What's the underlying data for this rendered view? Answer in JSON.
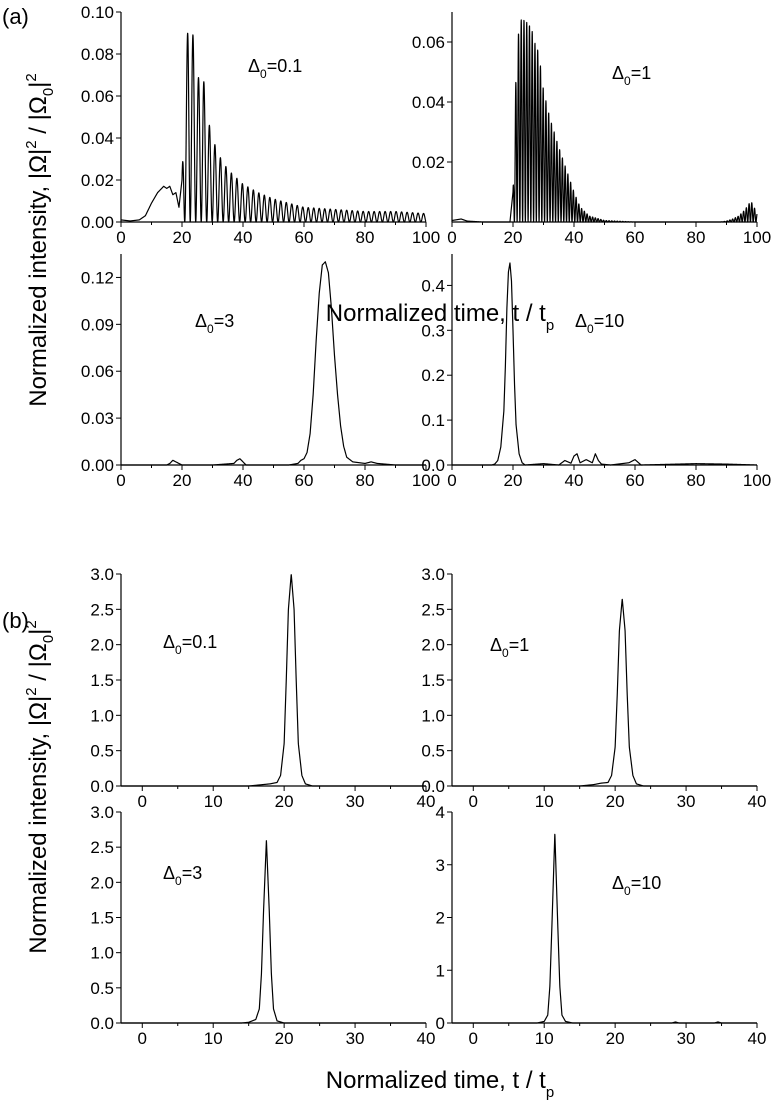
{
  "figure": {
    "part_a": {
      "label": "(a)",
      "ylabel_main": "Normalized intensity, |Ω|",
      "ylabel_sup1": "2",
      "ylabel_mid": " / |Ω",
      "ylabel_sub": "0",
      "ylabel_end": "|",
      "ylabel_sup2": "2",
      "xlabel_main": "Normalized time, t / t",
      "xlabel_sub": "p"
    },
    "part_b": {
      "label": "(b)",
      "ylabel_main": "Normalized intensity, |Ω|",
      "ylabel_sup1": "2",
      "ylabel_mid": " / |Ω",
      "ylabel_sub": "0",
      "ylabel_end": "|",
      "ylabel_sup2": "2",
      "xlabel_main": "Normalized time, t / t",
      "xlabel_sub": "p"
    }
  },
  "chart_data": [
    {
      "type": "line",
      "part": "a",
      "panel": "top-left",
      "annotation": {
        "sym": "Δ",
        "sub": "0",
        "rest": "=0.1"
      },
      "xlim": [
        0,
        100
      ],
      "ylim": [
        0,
        0.1
      ],
      "xticks": [
        0,
        20,
        40,
        60,
        80,
        100
      ],
      "xtick_labels": [
        "0",
        "20",
        "40",
        "60",
        "80",
        "100"
      ],
      "yticks": [
        0,
        0.02,
        0.04,
        0.06,
        0.08,
        0.1
      ],
      "ytick_labels": [
        "0.00",
        "0.02",
        "0.04",
        "0.06",
        "0.08",
        "0.10"
      ],
      "series": [
        {
          "x": [
            0,
            3,
            6,
            8,
            10,
            12,
            14,
            15,
            16,
            17,
            18,
            19,
            20,
            20.5,
            21,
            22,
            23,
            23.5,
            24,
            25,
            26,
            27,
            28,
            30,
            32,
            35,
            40,
            45,
            50,
            55,
            60,
            65,
            70,
            75,
            80,
            85,
            90,
            95,
            100
          ],
          "y": [
            0.001,
            0.0005,
            0.001,
            0.003,
            0.009,
            0.014,
            0.017,
            0.016,
            0.017,
            0.013,
            0.014,
            0.007,
            0.02,
            0.05,
            0.066,
            0.095,
            0.097,
            0.09,
            0.085,
            0.068,
            0.07,
            0.07,
            0.052,
            0.04,
            0.032,
            0.025,
            0.018,
            0.014,
            0.011,
            0.009,
            0.007,
            0.0065,
            0.006,
            0.0055,
            0.005,
            0.005,
            0.005,
            0.0045,
            0.004
          ],
          "oscillation_period": 1.8,
          "oscillation_start": 20
        }
      ]
    },
    {
      "type": "line",
      "part": "a",
      "panel": "top-right",
      "annotation": {
        "sym": "Δ",
        "sub": "0",
        "rest": "=1"
      },
      "xlim": [
        0,
        100
      ],
      "ylim": [
        0,
        0.07
      ],
      "xticks": [
        0,
        20,
        40,
        60,
        80,
        100
      ],
      "xtick_labels": [
        "0",
        "20",
        "40",
        "60",
        "80",
        "100"
      ],
      "yticks": [
        0.02,
        0.04,
        0.06
      ],
      "ytick_labels": [
        "0.02",
        "0.04",
        "0.06"
      ],
      "series": [
        {
          "x": [
            0,
            3,
            5,
            10,
            15,
            19,
            20,
            21,
            22,
            23,
            24,
            25,
            26,
            27,
            28,
            29,
            30,
            32,
            35,
            38,
            40,
            42,
            45,
            50,
            60,
            70,
            80,
            88,
            90,
            92,
            94,
            96,
            98,
            100
          ],
          "y": [
            0.0005,
            0.001,
            0.0003,
            0,
            0,
            0,
            0.01,
            0.05,
            0.066,
            0.068,
            0.067,
            0.066,
            0.065,
            0.06,
            0.058,
            0.052,
            0.044,
            0.035,
            0.025,
            0.016,
            0.01,
            0.005,
            0.002,
            0.0005,
            0,
            0,
            0,
            0,
            0.0003,
            0.001,
            0.002,
            0.004,
            0.007,
            0.003
          ],
          "oscillation_period": 0.9,
          "oscillation_start": 20
        }
      ]
    },
    {
      "type": "line",
      "part": "a",
      "panel": "bottom-left",
      "annotation": {
        "sym": "Δ",
        "sub": "0",
        "rest": "=3"
      },
      "xlim": [
        0,
        100
      ],
      "ylim": [
        0,
        0.135
      ],
      "xticks": [
        0,
        20,
        40,
        60,
        80,
        100
      ],
      "xtick_labels": [
        "0",
        "20",
        "40",
        "60",
        "80",
        "100"
      ],
      "yticks": [
        0,
        0.03,
        0.06,
        0.09,
        0.12
      ],
      "ytick_labels": [
        "0.00",
        "0.03",
        "0.06",
        "0.09",
        "0.12"
      ],
      "series": [
        {
          "x": [
            0,
            10,
            15,
            16,
            17,
            18,
            19,
            20,
            30,
            37,
            38,
            39,
            40,
            41,
            45,
            55,
            58,
            59,
            60,
            61,
            62,
            63,
            64,
            65,
            66,
            67,
            68,
            69,
            70,
            71,
            72,
            73,
            74,
            76,
            80,
            82,
            84,
            90,
            100
          ],
          "y": [
            0,
            0,
            0,
            0.001,
            0.003,
            0.002,
            0.001,
            0,
            0,
            0.001,
            0.003,
            0.004,
            0.002,
            0,
            0,
            0,
            0.001,
            0.003,
            0.004,
            0.008,
            0.02,
            0.045,
            0.08,
            0.11,
            0.128,
            0.13,
            0.123,
            0.1,
            0.07,
            0.045,
            0.025,
            0.012,
            0.005,
            0.002,
            0.001,
            0.002,
            0.001,
            0,
            0
          ]
        }
      ]
    },
    {
      "type": "line",
      "part": "a",
      "panel": "bottom-right",
      "annotation": {
        "sym": "Δ",
        "sub": "0",
        "rest": "=10"
      },
      "xlim": [
        0,
        100
      ],
      "ylim": [
        0,
        0.47
      ],
      "xticks": [
        0,
        20,
        40,
        60,
        80,
        100
      ],
      "xtick_labels": [
        "0",
        "20",
        "40",
        "60",
        "80",
        "100"
      ],
      "yticks": [
        0,
        0.1,
        0.2,
        0.3,
        0.4
      ],
      "ytick_labels": [
        "0.0",
        "0.1",
        "0.2",
        "0.3",
        "0.4"
      ],
      "series": [
        {
          "x": [
            0,
            13,
            14,
            15,
            16,
            17,
            17.5,
            18,
            18.5,
            19,
            19.5,
            20,
            20.5,
            21,
            22,
            23,
            24,
            30,
            35,
            37,
            39,
            40,
            41,
            42,
            44,
            46,
            47,
            48,
            49,
            52,
            58,
            60,
            62,
            80,
            90,
            100
          ],
          "y": [
            0,
            0,
            0.002,
            0.01,
            0.04,
            0.12,
            0.22,
            0.35,
            0.43,
            0.45,
            0.41,
            0.3,
            0.18,
            0.09,
            0.025,
            0.005,
            0,
            0.003,
            0,
            0.01,
            0.004,
            0.02,
            0.025,
            0.005,
            0.012,
            0.005,
            0.025,
            0.01,
            0.002,
            0,
            0.005,
            0.012,
            0,
            0.003,
            0.002,
            0
          ]
        }
      ]
    },
    {
      "type": "line",
      "part": "b",
      "panel": "top-left",
      "annotation": {
        "sym": "Δ",
        "sub": "0",
        "rest": "=0.1"
      },
      "xlim": [
        -3,
        40
      ],
      "ylim": [
        0,
        3.0
      ],
      "xticks": [
        0,
        10,
        20,
        30,
        40
      ],
      "xtick_labels": [
        "0",
        "10",
        "20",
        "30",
        "40"
      ],
      "yticks": [
        0,
        0.5,
        1.0,
        1.5,
        2.0,
        2.5,
        3.0
      ],
      "ytick_labels": [
        "0.0",
        "0.5",
        "1.0",
        "1.5",
        "2.0",
        "2.5",
        "3.0"
      ],
      "series": [
        {
          "x": [
            -3,
            15,
            17,
            18,
            19,
            19.5,
            20,
            20.3,
            20.6,
            21,
            21.4,
            21.7,
            22,
            22.5,
            23,
            24,
            30,
            40
          ],
          "y": [
            0,
            0,
            0.02,
            0.03,
            0.05,
            0.15,
            0.6,
            1.5,
            2.5,
            3.0,
            2.5,
            1.5,
            0.6,
            0.15,
            0.03,
            0,
            0,
            0
          ]
        }
      ]
    },
    {
      "type": "line",
      "part": "b",
      "panel": "top-right",
      "annotation": {
        "sym": "Δ",
        "sub": "0",
        "rest": "=1"
      },
      "xlim": [
        -3,
        40
      ],
      "ylim": [
        0,
        3.0
      ],
      "xticks": [
        0,
        10,
        20,
        30,
        40
      ],
      "xtick_labels": [
        "0",
        "10",
        "20",
        "30",
        "40"
      ],
      "yticks": [
        0,
        0.5,
        1.0,
        1.5,
        2.0,
        2.5,
        3.0
      ],
      "ytick_labels": [
        "0.0",
        "0.5",
        "1.0",
        "1.5",
        "2.0",
        "2.5",
        "3.0"
      ],
      "series": [
        {
          "x": [
            -3,
            15,
            17,
            18,
            19,
            19.5,
            20,
            20.3,
            20.6,
            21,
            21.4,
            21.7,
            22,
            22.5,
            23,
            24,
            30,
            40
          ],
          "y": [
            0,
            0,
            0.02,
            0.04,
            0.05,
            0.15,
            0.55,
            1.3,
            2.2,
            2.65,
            2.2,
            1.3,
            0.55,
            0.15,
            0.03,
            0,
            0,
            0
          ]
        }
      ]
    },
    {
      "type": "line",
      "part": "b",
      "panel": "bottom-left",
      "annotation": {
        "sym": "Δ",
        "sub": "0",
        "rest": "=3"
      },
      "xlim": [
        -3,
        40
      ],
      "ylim": [
        0,
        3.0
      ],
      "xticks": [
        0,
        10,
        20,
        30,
        40
      ],
      "xtick_labels": [
        "0",
        "10",
        "20",
        "30",
        "40"
      ],
      "yticks": [
        0,
        0.5,
        1.0,
        1.5,
        2.0,
        2.5,
        3.0
      ],
      "ytick_labels": [
        "0.0",
        "0.5",
        "1.0",
        "1.5",
        "2.0",
        "2.5",
        "3.0"
      ],
      "series": [
        {
          "x": [
            -3,
            14,
            15,
            16,
            16.5,
            16.8,
            17.1,
            17.5,
            17.9,
            18.2,
            18.5,
            19,
            20,
            30,
            40
          ],
          "y": [
            0,
            0,
            0.01,
            0.05,
            0.2,
            0.7,
            1.6,
            2.6,
            1.6,
            0.7,
            0.2,
            0.03,
            0,
            0,
            0
          ]
        }
      ]
    },
    {
      "type": "line",
      "part": "b",
      "panel": "bottom-right",
      "annotation": {
        "sym": "Δ",
        "sub": "0",
        "rest": "=10"
      },
      "xlim": [
        -3,
        40
      ],
      "ylim": [
        0,
        4
      ],
      "xticks": [
        0,
        10,
        20,
        30,
        40
      ],
      "xtick_labels": [
        "0",
        "10",
        "20",
        "30",
        "40"
      ],
      "yticks": [
        0,
        1,
        2,
        3,
        4
      ],
      "ytick_labels": [
        "0",
        "1",
        "2",
        "3",
        "4"
      ],
      "series": [
        {
          "x": [
            -3,
            9,
            10,
            10.5,
            10.8,
            11.1,
            11.5,
            11.9,
            12.2,
            12.5,
            13,
            14,
            28,
            28.5,
            29,
            34,
            34.5,
            35,
            40
          ],
          "y": [
            0,
            0,
            0.03,
            0.15,
            0.7,
            1.9,
            3.6,
            1.9,
            0.7,
            0.15,
            0.03,
            0,
            0,
            0.02,
            0,
            0,
            0.02,
            0,
            0
          ]
        }
      ]
    }
  ]
}
